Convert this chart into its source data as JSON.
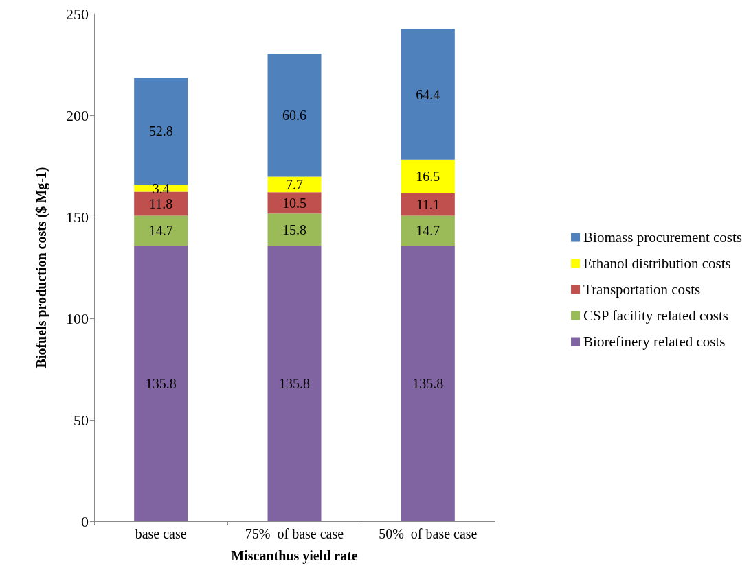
{
  "chart_data": {
    "type": "bar",
    "stacked": true,
    "xlabel": "Miscanthus yield rate",
    "ylabel": "Biofuels production costs ($ Mg-1)",
    "categories": [
      "base case",
      "75%  of base case",
      "50%  of base case"
    ],
    "series": [
      {
        "name": "Biorefinery related costs",
        "color": "#8064a2",
        "values": [
          135.8,
          135.8,
          135.8
        ]
      },
      {
        "name": "CSP facility related costs",
        "color": "#9bbb59",
        "values": [
          14.7,
          15.8,
          14.7
        ]
      },
      {
        "name": "Transportation costs",
        "color": "#c0504d",
        "values": [
          11.8,
          10.5,
          11.1
        ]
      },
      {
        "name": "Ethanol distribution costs",
        "color": "#ffff00",
        "values": [
          3.4,
          7.7,
          16.5
        ]
      },
      {
        "name": "Biomass procurement costs",
        "color": "#4f81bd",
        "values": [
          52.8,
          60.6,
          64.4
        ]
      }
    ],
    "ylim": [
      0,
      250
    ],
    "yticks": [
      0,
      50,
      100,
      150,
      200,
      250
    ],
    "grid": false,
    "legend": "right",
    "data_labels": true
  }
}
